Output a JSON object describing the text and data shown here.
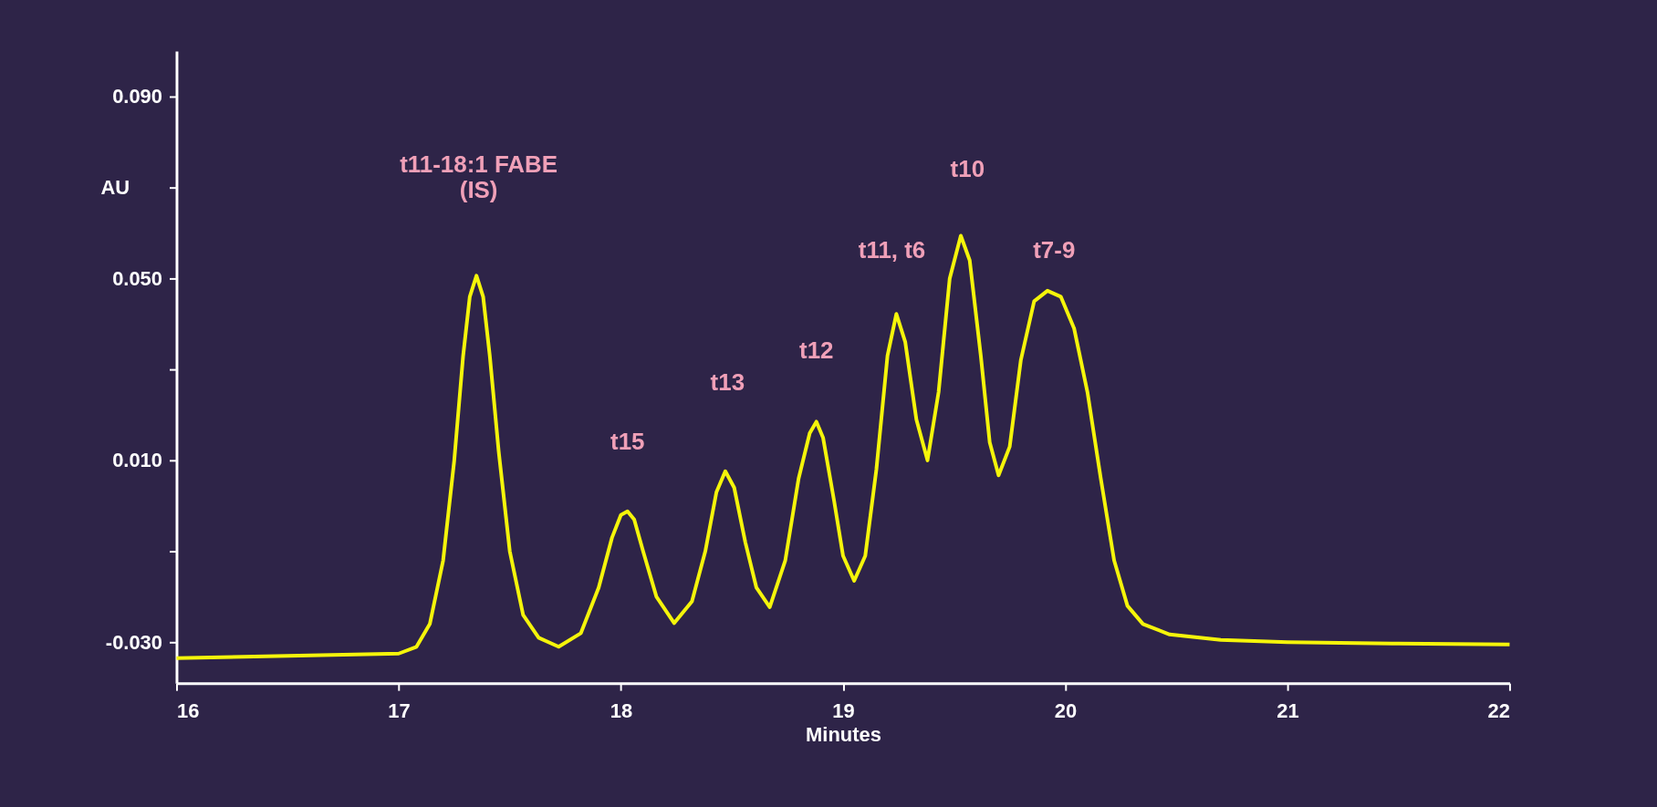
{
  "chart_data": {
    "type": "line",
    "xlabel": "Minutes",
    "ylabel": "AU",
    "xlim": [
      16,
      22
    ],
    "ylim": [
      -0.039,
      0.1
    ],
    "xticks": [
      16,
      17,
      18,
      19,
      20,
      21,
      22
    ],
    "yticks": [
      {
        "value": 0.09,
        "label": "0.090"
      },
      {
        "value": 0.07,
        "label": null
      },
      {
        "value": 0.05,
        "label": "0.050"
      },
      {
        "value": 0.03,
        "label": null
      },
      {
        "value": 0.01,
        "label": "0.010"
      },
      {
        "value": -0.01,
        "label": null
      },
      {
        "value": -0.03,
        "label": "-0.030"
      }
    ],
    "grid": false,
    "legend": false,
    "marker": "none",
    "line_style": "solid",
    "x": [
      16.0,
      16.5,
      17.0,
      17.08,
      17.14,
      17.2,
      17.25,
      17.29,
      17.32,
      17.35,
      17.38,
      17.41,
      17.45,
      17.5,
      17.56,
      17.63,
      17.72,
      17.82,
      17.9,
      17.96,
      18.0,
      18.03,
      18.06,
      18.1,
      18.16,
      18.24,
      18.32,
      18.38,
      18.43,
      18.47,
      18.51,
      18.56,
      18.61,
      18.67,
      18.74,
      18.8,
      18.85,
      18.88,
      18.91,
      18.96,
      19.0,
      19.05,
      19.1,
      19.15,
      19.2,
      19.24,
      19.28,
      19.33,
      19.38,
      19.43,
      19.48,
      19.53,
      19.57,
      19.62,
      19.66,
      19.7,
      19.75,
      19.8,
      19.86,
      19.92,
      19.98,
      20.04,
      20.1,
      20.16,
      20.22,
      20.28,
      20.35,
      20.47,
      20.7,
      21.0,
      21.5,
      22.0
    ],
    "series": [
      {
        "color": "#f5f50a",
        "values": [
          -0.0335,
          -0.033,
          -0.0325,
          -0.031,
          -0.026,
          -0.012,
          0.01,
          0.033,
          0.046,
          0.0506,
          0.046,
          0.033,
          0.012,
          -0.01,
          -0.024,
          -0.029,
          -0.031,
          -0.028,
          -0.018,
          -0.007,
          -0.002,
          -0.0012,
          -0.003,
          -0.01,
          -0.02,
          -0.0258,
          -0.021,
          -0.01,
          0.003,
          0.0076,
          0.004,
          -0.008,
          -0.018,
          -0.0223,
          -0.012,
          0.006,
          0.016,
          0.0185,
          0.015,
          0.001,
          -0.011,
          -0.0165,
          -0.011,
          0.008,
          0.033,
          0.0422,
          0.036,
          0.019,
          0.01,
          0.025,
          0.05,
          0.0594,
          0.054,
          0.033,
          0.014,
          0.0067,
          0.013,
          0.032,
          0.045,
          0.0473,
          0.046,
          0.039,
          0.025,
          0.006,
          -0.012,
          -0.022,
          -0.026,
          -0.0283,
          -0.0295,
          -0.03,
          -0.0303,
          -0.0305
        ]
      }
    ],
    "annotations": [
      "t11-18:1 FABE\n(IS)",
      "t15",
      "t13",
      "t12",
      "t11, t6",
      "t10",
      "t7-9"
    ]
  }
}
